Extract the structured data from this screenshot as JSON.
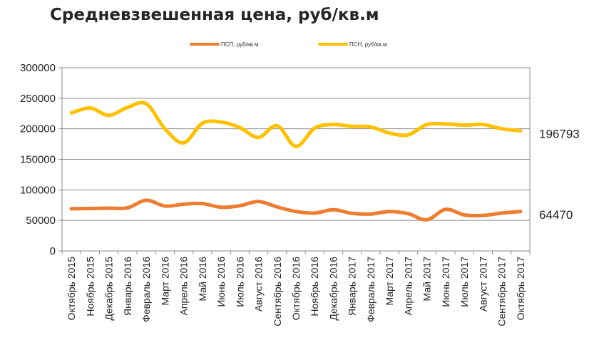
{
  "chart_data": {
    "type": "line",
    "title": "Средневзвешенная цена, руб/кв.м",
    "categories": [
      "Октябрь 2015",
      "Ноябрь 2015",
      "Декабрь 2015",
      "Январь 2016",
      "Февраль 2016",
      "Март 2016",
      "Апрель 2016",
      "Май 2016",
      "Июнь 2016",
      "Июль 2016",
      "Август 2016",
      "Сентябрь 2016",
      "Октябрь 2016",
      "Ноябрь 2016",
      "Декабрь 2016",
      "Январь 2017",
      "Февраль 2017",
      "Март 2017",
      "Апрель 2017",
      "Май 2017",
      "Июнь 2017",
      "Июль 2017",
      "Август 2017",
      "Сентябрь 2017",
      "Октябрь 2017"
    ],
    "series": [
      {
        "name": "ПСП, руб/кв.м",
        "color": "#ED7D31",
        "values": [
          69000,
          69500,
          70000,
          70500,
          83000,
          73500,
          76500,
          77500,
          71500,
          74000,
          81000,
          72000,
          64500,
          62000,
          67500,
          61500,
          60500,
          64500,
          61000,
          51000,
          68000,
          59000,
          58000,
          62000,
          64470
        ]
      },
      {
        "name": "ПСН, руб/кв.м",
        "color": "#FFC000",
        "values": [
          226000,
          234000,
          222000,
          235000,
          241000,
          200000,
          177000,
          209000,
          211000,
          202000,
          186000,
          205000,
          171000,
          201000,
          207000,
          204000,
          203000,
          193000,
          190000,
          207000,
          208000,
          206000,
          207000,
          200000,
          196793
        ]
      }
    ],
    "end_labels": [
      "64470",
      "196793"
    ],
    "ylim": [
      0,
      300000
    ],
    "yticks": [
      0,
      50000,
      100000,
      150000,
      200000,
      250000,
      300000
    ],
    "grid": true,
    "legend_position": "top"
  }
}
